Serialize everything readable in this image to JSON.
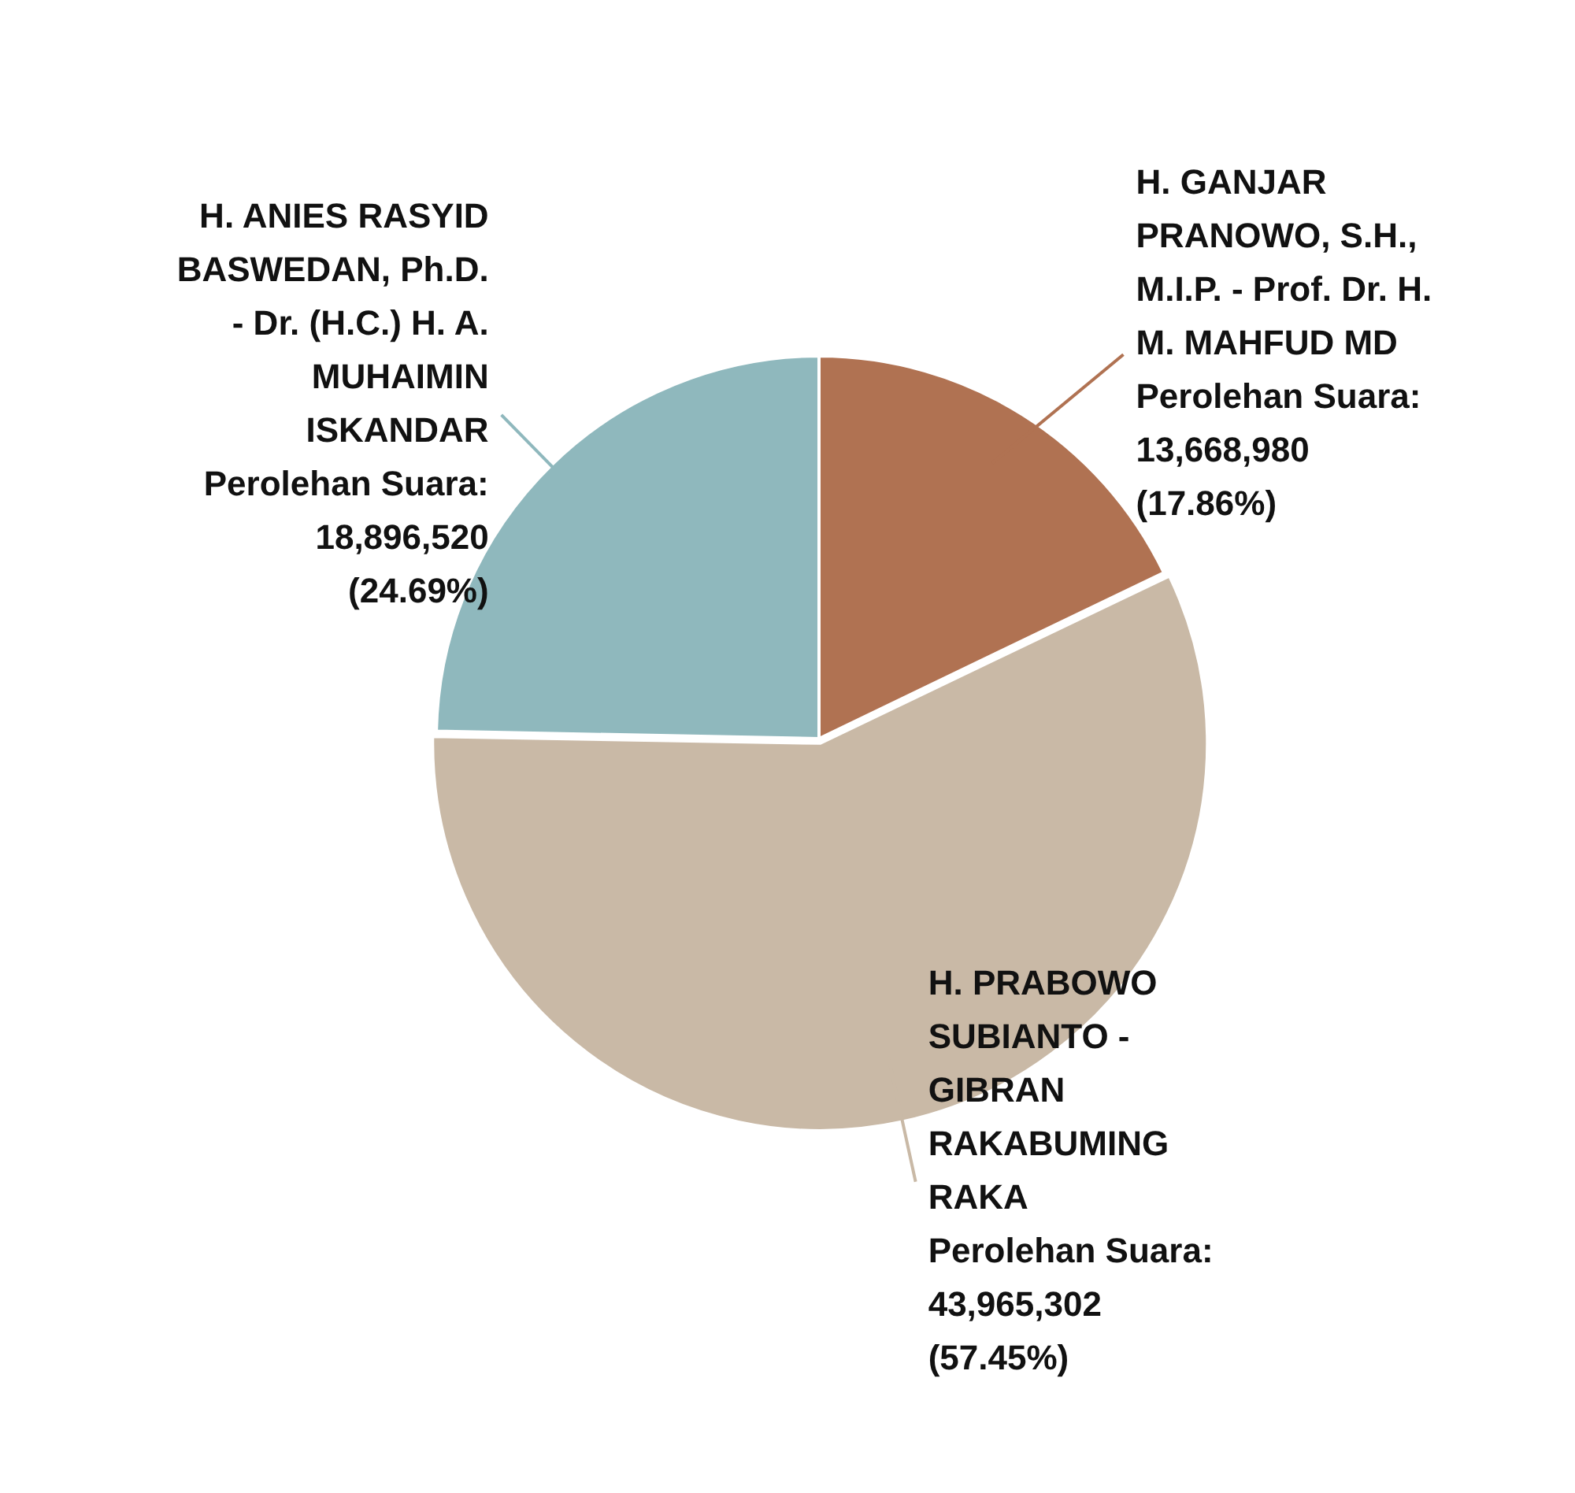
{
  "chart_data": {
    "type": "pie",
    "categories": [
      "H. GANJAR PRANOWO, S.H., M.I.P. - Prof. Dr. H. M. MAHFUD MD",
      "H. PRABOWO SUBIANTO - GIBRAN RAKABUMING RAKA",
      "H. ANIES RASYID BASWEDAN, Ph.D. - Dr. (H.C.) H. A. MUHAIMIN ISKANDAR"
    ],
    "values": [
      13668980,
      43965302,
      18896520
    ],
    "colors": [
      "#b07252",
      "#c9b9a6",
      "#8fb8bd"
    ],
    "value_labels": [
      "Perolehan Suara: 13,668,980 (17.86%)",
      "Perolehan Suara: 43,965,302 (57.45%)",
      "Perolehan Suara: 18,896,520 (24.69%)"
    ],
    "legend": false
  }
}
